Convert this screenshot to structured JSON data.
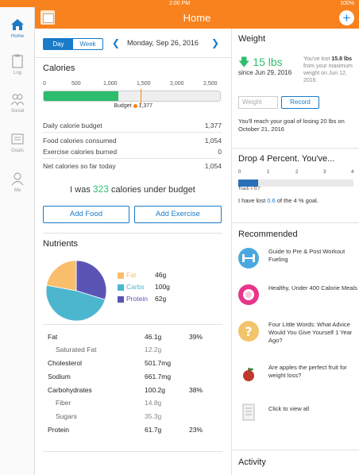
{
  "status": {
    "time": "2:00 PM",
    "battery": "100%"
  },
  "header": {
    "title": "Home"
  },
  "nav": [
    {
      "label": "Home"
    },
    {
      "label": "Log"
    },
    {
      "label": "Social"
    },
    {
      "label": "Goals"
    },
    {
      "label": "Me"
    }
  ],
  "date_bar": {
    "day_label": "Day",
    "week_label": "Week",
    "date": "Monday, Sep 26, 2016"
  },
  "calories": {
    "title": "Calories",
    "scale": [
      "0",
      "500",
      "1,000",
      "1,500",
      "2,000",
      "2,500"
    ],
    "scale_max": 2500,
    "consumed_value": 1054,
    "budget_value": 1377,
    "budget_label": "Budget",
    "budget_text": "1,377",
    "rows": [
      {
        "label": "Daily calorie budget",
        "value": "1,377"
      },
      {
        "label": "Food calories consumed",
        "value": "1,054"
      },
      {
        "label": "Exercise calories burned",
        "value": "0"
      },
      {
        "label": "Net calories so far today",
        "value": "1,054"
      }
    ],
    "under_prefix": "I was",
    "under_value": "323",
    "under_suffix": "calories under budget",
    "add_food": "Add Food",
    "add_exercise": "Add Exercise"
  },
  "nutrients": {
    "title": "Nutrients",
    "pie": [
      {
        "name": "Fat",
        "value": 46,
        "color": "#f9be6b"
      },
      {
        "name": "Carbs",
        "value": 100,
        "color": "#4db6cf"
      },
      {
        "name": "Protein",
        "value": 62,
        "color": "#5a55b5"
      }
    ],
    "legend": [
      {
        "label": "Fat",
        "value": "46g",
        "color": "#f9be6b"
      },
      {
        "label": "Carbs",
        "value": "100g",
        "color": "#4db6cf"
      },
      {
        "label": "Protein",
        "value": "62g",
        "color": "#5a55b5"
      }
    ],
    "rows": [
      {
        "label": "Fat",
        "amount": "46.1g",
        "pct": "39%",
        "sub": false
      },
      {
        "label": "Saturated Fat",
        "amount": "12.2g",
        "pct": "",
        "sub": true
      },
      {
        "label": "Cholesterol",
        "amount": "501.7mg",
        "pct": "",
        "sub": false
      },
      {
        "label": "Sodium",
        "amount": "661.7mg",
        "pct": "",
        "sub": false
      },
      {
        "label": "Carbohydrates",
        "amount": "100.2g",
        "pct": "38%",
        "sub": false
      },
      {
        "label": "Fiber",
        "amount": "14.8g",
        "pct": "",
        "sub": true
      },
      {
        "label": "Sugars",
        "amount": "35.3g",
        "pct": "",
        "sub": true
      },
      {
        "label": "Protein",
        "amount": "61.7g",
        "pct": "23%",
        "sub": false
      }
    ]
  },
  "weight": {
    "title": "Weight",
    "lost": "15 lbs",
    "since": "since Jun 29, 2016",
    "note_prefix": "You've lost",
    "note_amount": "15.8 lbs",
    "note_suffix": "from your maximum weight on Jun 12, 2016.",
    "input_placeholder": "Weight",
    "record_label": "Record",
    "reach": "You'll reach your goal of losing 20 lbs on October 21, 2016"
  },
  "drop": {
    "title": "Drop 4 Percent. You've...",
    "ticks": [
      "0",
      "1",
      "2",
      "3",
      "4"
    ],
    "track_value": 0.7,
    "track_label": "Track",
    "track_text": "0.7",
    "lost_prefix": "I have lost",
    "lost_value": "0.6",
    "lost_suffix": "of the 4 % goal."
  },
  "recommended": {
    "title": "Recommended",
    "items": [
      {
        "text": "Guide to Pre & Post Workout Fueling",
        "icon": "dumbbell-icon",
        "color": "#4aa8e0"
      },
      {
        "text": "Healthy, Under 400 Calorie Meals",
        "icon": "plate-icon",
        "color": "#e8358a"
      },
      {
        "text": "Four Little Words: What Advice Would You Give Yourself 1 Year Ago?",
        "icon": "question-icon",
        "color": "#f2c46b"
      },
      {
        "text": "Are apples the perfect fruit for weight loss?",
        "icon": "apple-icon",
        "color": "#c0392b"
      },
      {
        "text": "Click to view all",
        "icon": "document-icon",
        "color": "#bbbbbb"
      }
    ]
  },
  "activity": {
    "title": "Activity"
  }
}
